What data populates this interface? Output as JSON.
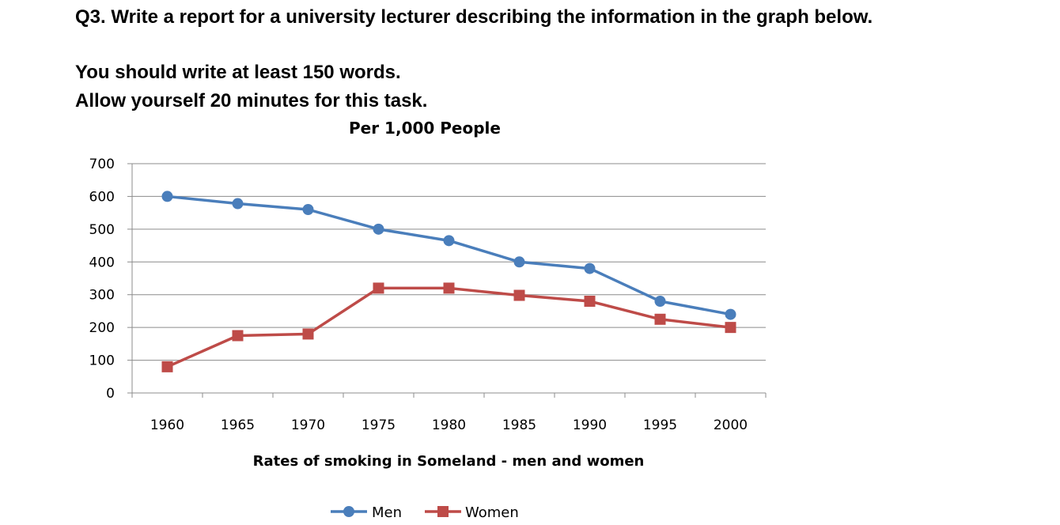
{
  "task": {
    "question": "Q3. Write a report for a university lecturer describing the information in the graph below.",
    "word_requirement": "You should write at least 150 words.",
    "time_allowance": "Allow yourself 20 minutes for this task."
  },
  "chart_data": {
    "type": "line",
    "title": "Per 1,000 People",
    "xlabel": "Rates of smoking in Someland - men and women",
    "ylabel": "",
    "categories": [
      "1960",
      "1965",
      "1970",
      "1975",
      "1980",
      "1985",
      "1990",
      "1995",
      "2000"
    ],
    "yticks": [
      "0",
      "100",
      "200",
      "300",
      "400",
      "500",
      "600",
      "700"
    ],
    "ylim": [
      0,
      700
    ],
    "grid": true,
    "legend_position": "bottom",
    "series": [
      {
        "name": "Men",
        "color": "#4a7ebb",
        "marker": "circle",
        "values": [
          600,
          578,
          560,
          500,
          465,
          400,
          380,
          280,
          240
        ]
      },
      {
        "name": "Women",
        "color": "#be4b48",
        "marker": "square",
        "values": [
          80,
          175,
          180,
          320,
          320,
          298,
          280,
          225,
          200
        ]
      }
    ]
  }
}
